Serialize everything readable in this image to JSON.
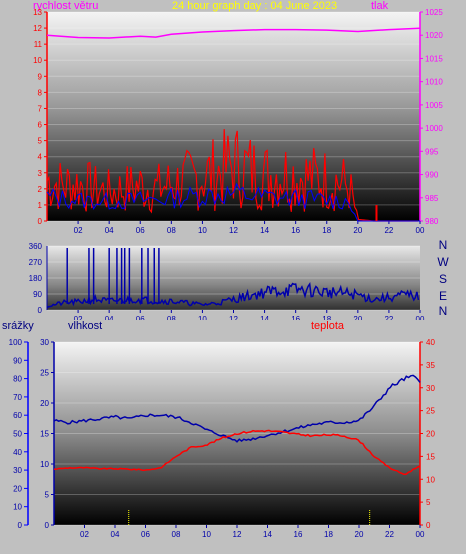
{
  "header": {
    "wind_label": "rychlost větru",
    "title": "24 hour graph day : 04 June 2023",
    "pressure_label": "tlak"
  },
  "bottom_header": {
    "rain_label": "srážky",
    "humidity_label": "vlhkost",
    "temperature_label": "teplota"
  },
  "colors": {
    "wind": "#ff0000",
    "gust": "#0000ff",
    "pressure": "#ff00ff",
    "direction": "#0000aa",
    "humidity": "#0000aa",
    "temperature": "#ff0000",
    "rain": "#ffff00",
    "rain_axis": "#0000ff",
    "temp_axis": "#ff0000"
  },
  "x_ticks": [
    "02",
    "04",
    "06",
    "08",
    "10",
    "12",
    "14",
    "16",
    "18",
    "20",
    "22",
    "00"
  ],
  "compass": [
    "N",
    "W",
    "S",
    "E",
    "N"
  ],
  "chart_data": [
    {
      "type": "line",
      "name": "wind-pressure",
      "x_unit": "hour",
      "x_range": [
        0,
        24
      ],
      "y_left_ticks": [
        "0",
        "1",
        "2",
        "3",
        "4",
        "5",
        "6",
        "7",
        "8",
        "9",
        "10",
        "11",
        "12",
        "13"
      ],
      "y_left_range": [
        0,
        13
      ],
      "y_right_ticks": [
        "980",
        "985",
        "990",
        "995",
        "1000",
        "1005",
        "1010",
        "1015",
        "1020",
        "1025"
      ],
      "y_right_range": [
        980,
        1025
      ],
      "series": [
        {
          "key": "wind",
          "hours": [
            0,
            1,
            2,
            3,
            4,
            5,
            6,
            7,
            8,
            9,
            10,
            11,
            12,
            13,
            14,
            15,
            16,
            17,
            18,
            19,
            19.5,
            20,
            21,
            22,
            23,
            24
          ],
          "values": [
            2.5,
            2.2,
            2.3,
            2.0,
            1.8,
            2.0,
            2.2,
            2.0,
            2.3,
            2.5,
            2.8,
            3.0,
            3.5,
            3.2,
            2.8,
            3.0,
            2.8,
            2.7,
            2.6,
            2.4,
            2.0,
            0.1,
            0,
            0,
            0,
            0
          ]
        },
        {
          "key": "gust",
          "hours": [
            0,
            2,
            4,
            6,
            8,
            10,
            12,
            14,
            16,
            18,
            19.5,
            20,
            24
          ],
          "values": [
            1.5,
            1.3,
            1.2,
            1.3,
            1.4,
            1.6,
            1.7,
            1.5,
            1.4,
            1.3,
            1.2,
            0,
            0
          ]
        },
        {
          "key": "pressure",
          "hours": [
            0,
            2,
            4,
            6,
            7,
            8,
            10,
            12,
            14,
            16,
            18,
            20,
            22,
            24
          ],
          "values": [
            1020,
            1019.5,
            1019.4,
            1019.8,
            1019.6,
            1020.2,
            1020.7,
            1021,
            1021.2,
            1021.2,
            1021.1,
            1020.8,
            1021.2,
            1021.5
          ]
        }
      ],
      "rain_marks_hours": [
        21.2
      ]
    },
    {
      "type": "line",
      "name": "wind-direction",
      "x_unit": "hour",
      "x_range": [
        0,
        24
      ],
      "y_ticks": [
        "360",
        "270",
        "180",
        "90",
        "0"
      ],
      "y_range": [
        0,
        360
      ],
      "series": [
        {
          "key": "direction",
          "hours": [
            0,
            1,
            2,
            3,
            4,
            5,
            6,
            7,
            8,
            9,
            10,
            11,
            12,
            13,
            14,
            15,
            16,
            17,
            18,
            19,
            20,
            21,
            22,
            23,
            24
          ],
          "values": [
            20,
            40,
            45,
            60,
            50,
            55,
            60,
            50,
            50,
            40,
            30,
            40,
            60,
            80,
            100,
            110,
            115,
            110,
            100,
            95,
            85,
            60,
            70,
            85,
            75
          ]
        }
      ],
      "spikes_hours": [
        1.3,
        2.7,
        3.0,
        4.0,
        4.5,
        4.8,
        5.0,
        5.3,
        6.1,
        6.5,
        6.9,
        7.2
      ]
    },
    {
      "type": "line",
      "name": "humidity-temperature-rain",
      "x_unit": "hour",
      "x_range": [
        0,
        24
      ],
      "y_left_ticks": [
        "0",
        "10",
        "20",
        "30",
        "40",
        "50",
        "60",
        "70",
        "80",
        "90",
        "100"
      ],
      "y_left_range": [
        0,
        100
      ],
      "y_mid_ticks": [
        "0",
        "5",
        "10",
        "15",
        "20",
        "25",
        "30"
      ],
      "y_mid_range": [
        0,
        30
      ],
      "y_right_ticks": [
        "0",
        "5",
        "10",
        "15",
        "20",
        "25",
        "30",
        "35",
        "40"
      ],
      "y_right_range": [
        0,
        40
      ],
      "series": [
        {
          "key": "humidity",
          "hours": [
            0,
            1,
            2,
            3,
            4,
            5,
            6,
            7,
            8,
            9,
            10,
            11,
            12,
            13,
            14,
            15,
            16,
            17,
            18,
            19,
            20,
            21,
            22,
            23,
            23.5,
            24
          ],
          "values": [
            57,
            56,
            57,
            58,
            59,
            58,
            60,
            60,
            59,
            56,
            52,
            49,
            46,
            47,
            49,
            51,
            53,
            55,
            56,
            56,
            57,
            65,
            75,
            80,
            81,
            79
          ]
        },
        {
          "key": "temperature",
          "hours": [
            0,
            1,
            2,
            3,
            4,
            5,
            6,
            7,
            8,
            9,
            10,
            11,
            12,
            13,
            14,
            15,
            16,
            17,
            18,
            19,
            20,
            21,
            22,
            23,
            24
          ],
          "values": [
            12.2,
            12.5,
            12.5,
            12.3,
            12.3,
            12.2,
            12.0,
            12.5,
            15.0,
            17.0,
            17.5,
            19.0,
            20.0,
            20.5,
            20.6,
            20.3,
            19.8,
            19.5,
            19.7,
            19.5,
            18.5,
            15.0,
            12.5,
            11.0,
            13.0
          ]
        }
      ],
      "rain_marks_hours": [
        4.9,
        20.7
      ]
    }
  ]
}
